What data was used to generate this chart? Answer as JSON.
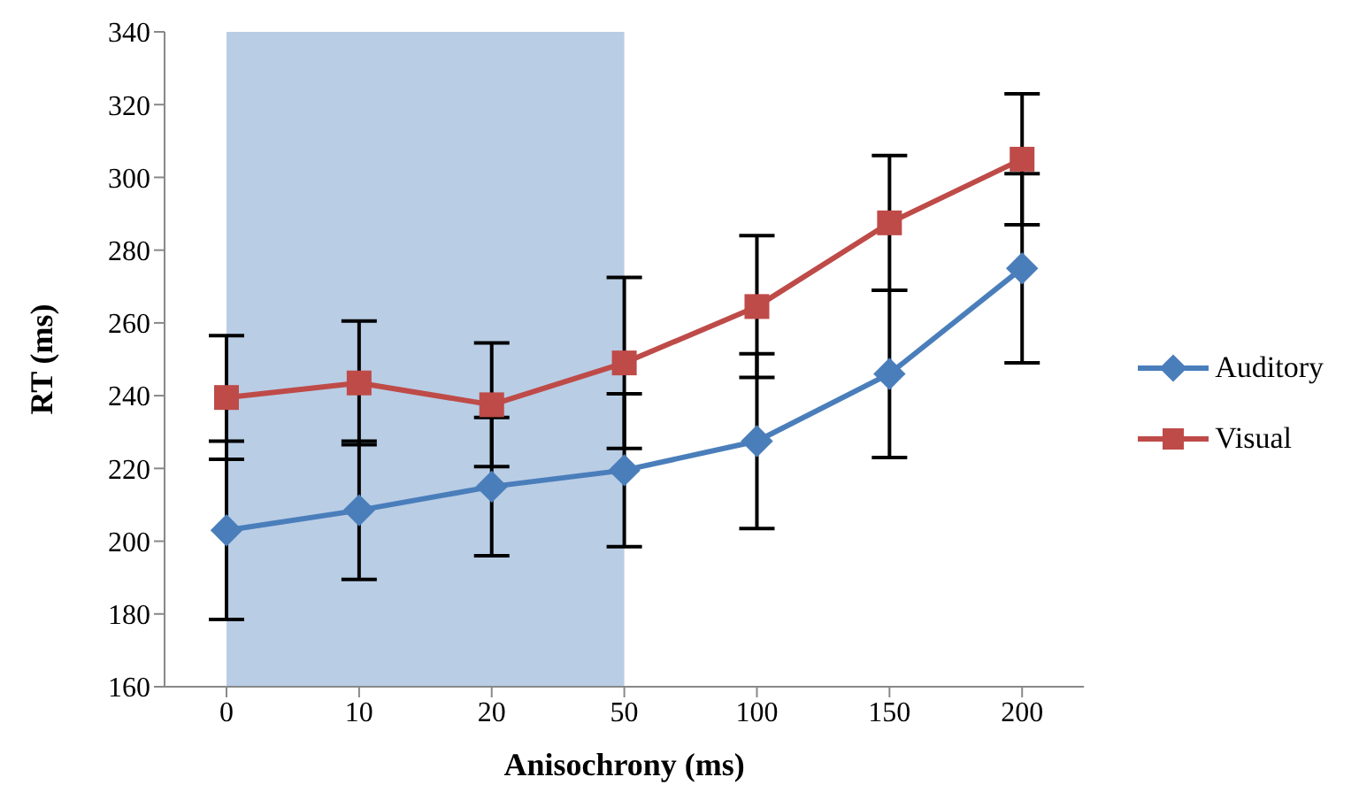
{
  "chart_data": {
    "type": "line",
    "xlabel": "Anisochrony (ms)",
    "ylabel": "RT (ms)",
    "categories": [
      "0",
      "10",
      "20",
      "50",
      "100",
      "150",
      "200"
    ],
    "series": [
      {
        "name": "Auditory",
        "color": "#4a7ebb",
        "marker": "diamond",
        "values": [
          203,
          208.5,
          215,
          219.5,
          227.5,
          246,
          275
        ],
        "errors": [
          24.5,
          19,
          19,
          21,
          24,
          23,
          26
        ]
      },
      {
        "name": "Visual",
        "color": "#be4b48",
        "marker": "square",
        "values": [
          239.5,
          243.5,
          237.5,
          249,
          264.5,
          287.5,
          305
        ],
        "errors": [
          17,
          17,
          17,
          23.5,
          19.5,
          18.5,
          18
        ]
      }
    ],
    "ylim": [
      160,
      340
    ],
    "yticks": [
      160,
      180,
      200,
      220,
      240,
      260,
      280,
      300,
      320,
      340
    ],
    "bands": [
      {
        "axis": "x",
        "from": "0",
        "to": "50",
        "color": "#b9cde5"
      }
    ],
    "legend": "right"
  }
}
